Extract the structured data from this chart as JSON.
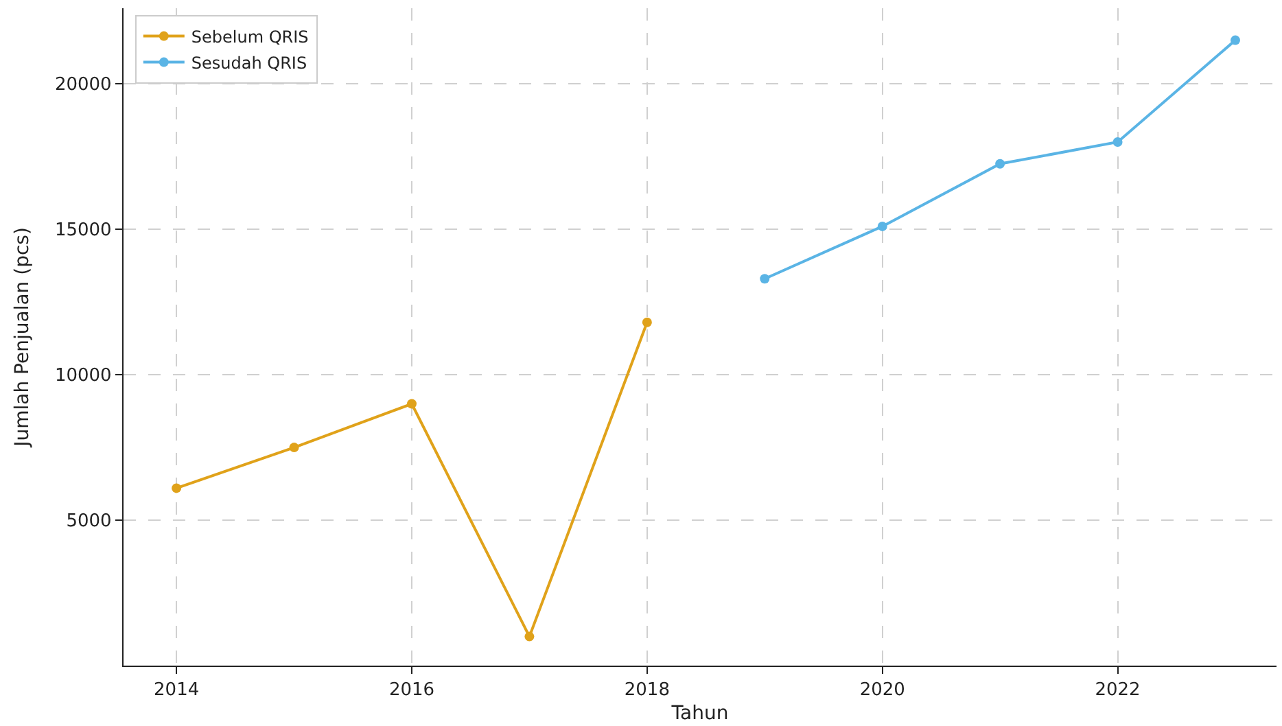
{
  "chart_data": {
    "type": "line",
    "xlabel": "Tahun",
    "ylabel": "Jumlah Penjualan (pcs)",
    "series": [
      {
        "name": "Sebelum QRIS",
        "color": "#e0a21a",
        "x": [
          2014,
          2015,
          2016,
          2017,
          2018
        ],
        "values": [
          6100,
          7500,
          9000,
          1000,
          11800
        ]
      },
      {
        "name": "Sesudah QRIS",
        "color": "#5ab4e5",
        "x": [
          2019,
          2020,
          2021,
          2022,
          2023
        ],
        "values": [
          13300,
          15100,
          17250,
          18000,
          21500
        ]
      }
    ],
    "xlim": [
      2013.55,
      2023.35
    ],
    "xticks": [
      2014,
      2016,
      2018,
      2020,
      2022
    ],
    "ylim": [
      0,
      22600
    ],
    "yticks": [
      5000,
      10000,
      15000,
      20000
    ],
    "grid": true,
    "legend": "top left",
    "marker": "circle",
    "line_style": "solid"
  }
}
